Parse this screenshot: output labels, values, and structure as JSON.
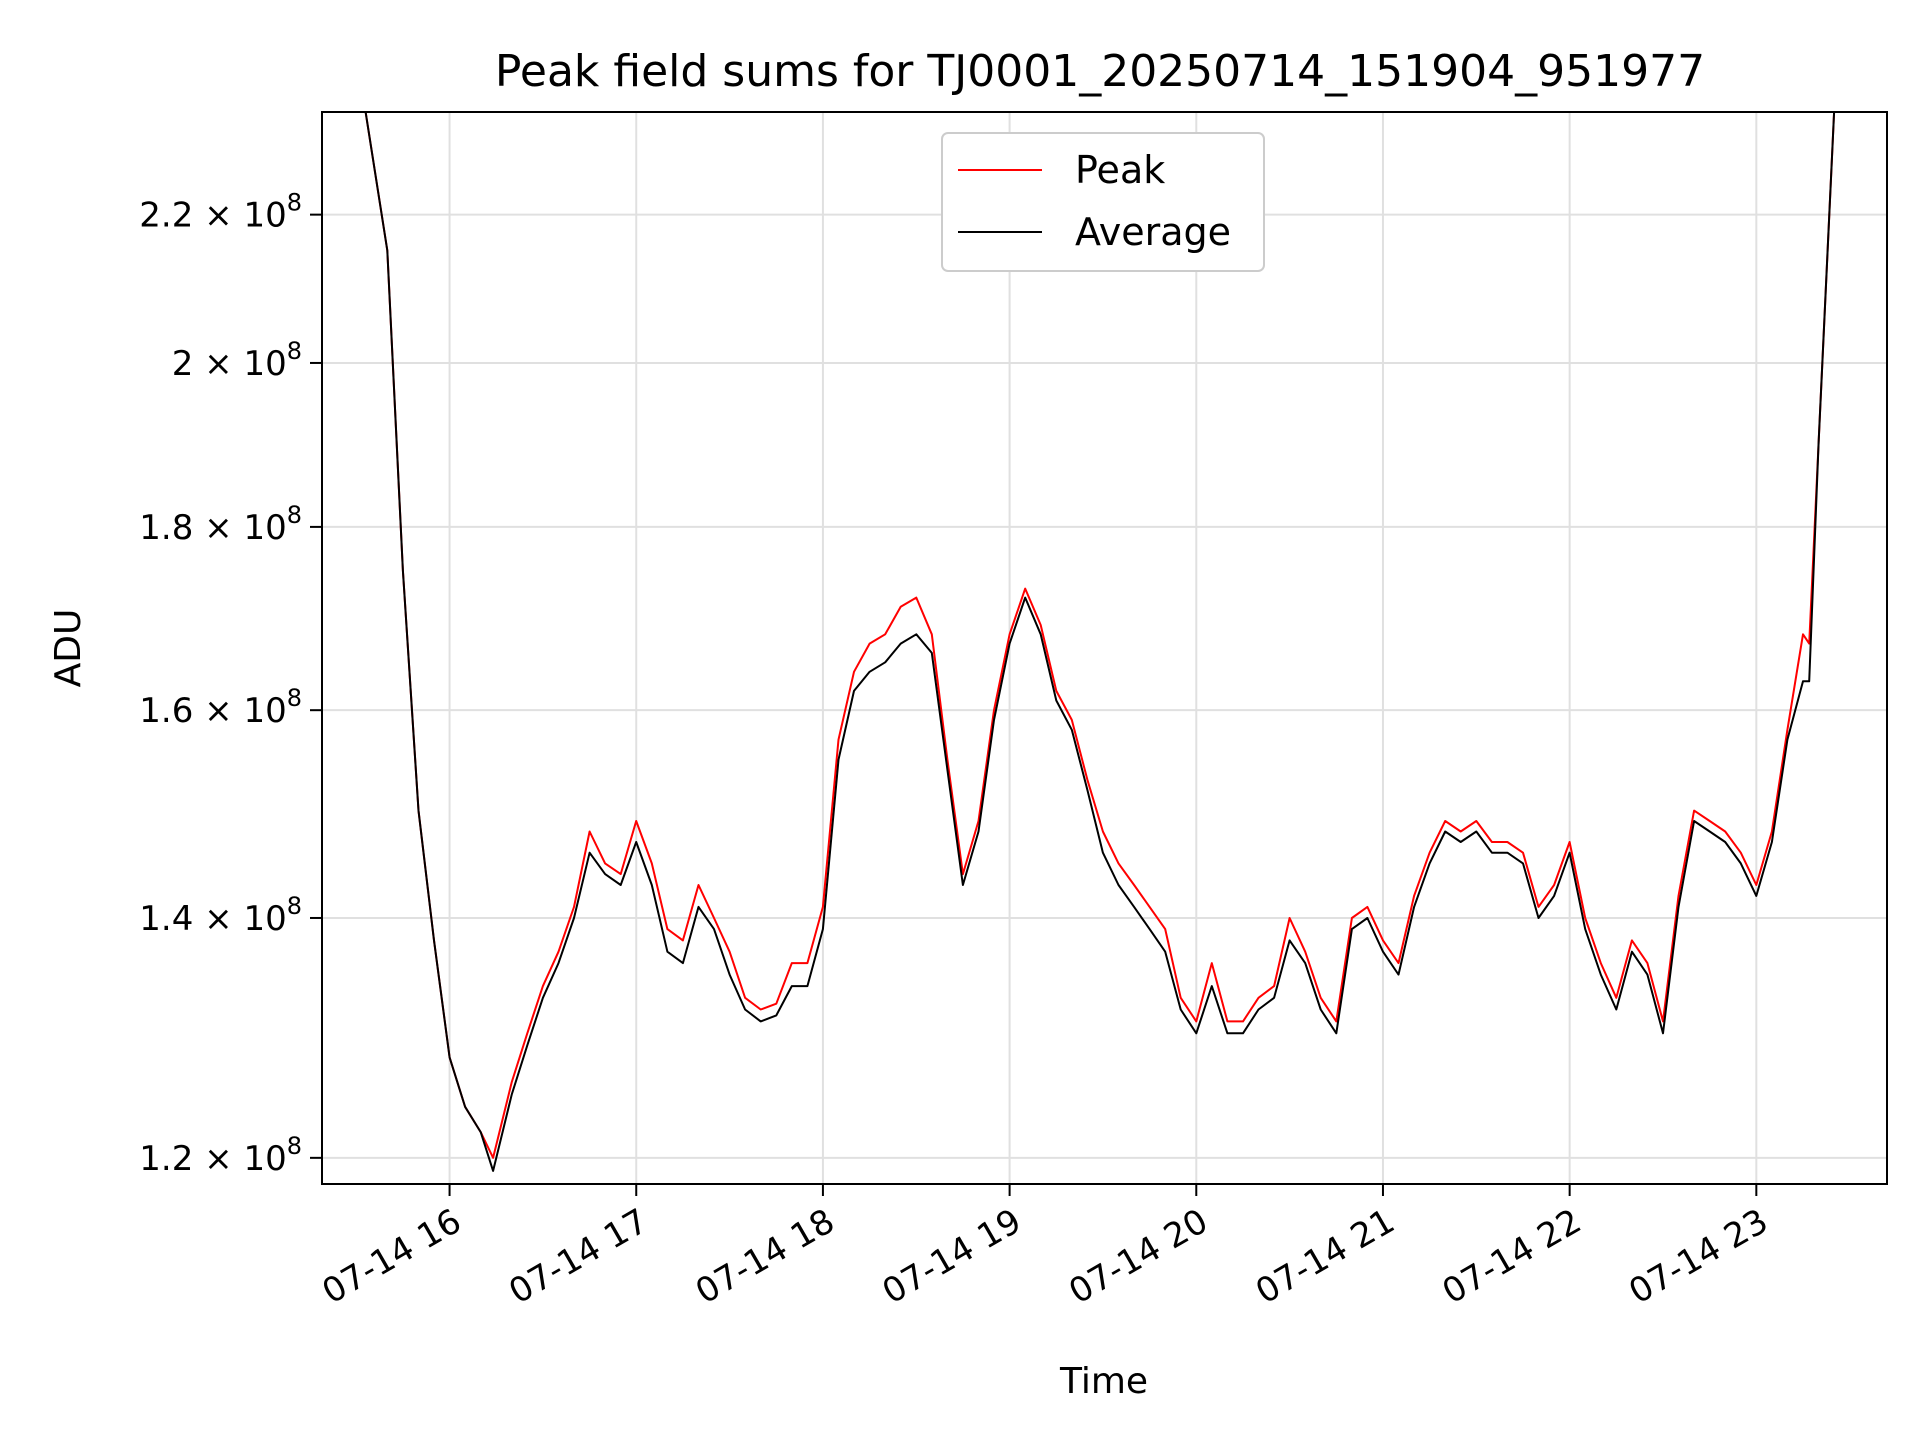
{
  "chart_data": {
    "type": "line",
    "title": "Peak field sums for TJ0001_20250714_151904_951977",
    "xlabel": "Time",
    "ylabel": "ADU",
    "yscale": "log",
    "grid": true,
    "legend_position": "top-center",
    "xlim": [
      "2025-07-14 15:19",
      "2025-07-14 23:42"
    ],
    "ylim": [
      118000000,
      235000000
    ],
    "x_ticks": [
      "07-14 16",
      "07-14 17",
      "07-14 18",
      "07-14 19",
      "07-14 20",
      "07-14 21",
      "07-14 22",
      "07-14 23"
    ],
    "y_ticks": [
      {
        "value": 120000000,
        "mantissa": "1.2",
        "exp": "8"
      },
      {
        "value": 140000000,
        "mantissa": "1.4",
        "exp": "8"
      },
      {
        "value": 160000000,
        "mantissa": "1.6",
        "exp": "8"
      },
      {
        "value": 180000000,
        "mantissa": "1.8",
        "exp": "8"
      },
      {
        "value": 200000000,
        "mantissa": "2",
        "exp": "8"
      },
      {
        "value": 220000000,
        "mantissa": "2.2",
        "exp": "8"
      }
    ],
    "x": [
      "15:33",
      "15:40",
      "15:45",
      "15:50",
      "15:55",
      "16:00",
      "16:05",
      "16:10",
      "16:14",
      "16:20",
      "16:25",
      "16:30",
      "16:35",
      "16:40",
      "16:45",
      "16:50",
      "16:55",
      "17:00",
      "17:05",
      "17:10",
      "17:15",
      "17:20",
      "17:25",
      "17:30",
      "17:35",
      "17:40",
      "17:45",
      "17:50",
      "17:55",
      "18:00",
      "18:05",
      "18:10",
      "18:15",
      "18:20",
      "18:25",
      "18:30",
      "18:35",
      "18:40",
      "18:45",
      "18:50",
      "18:55",
      "19:00",
      "19:05",
      "19:10",
      "19:15",
      "19:20",
      "19:25",
      "19:30",
      "19:35",
      "19:40",
      "19:45",
      "19:50",
      "19:55",
      "20:00",
      "20:05",
      "20:10",
      "20:15",
      "20:20",
      "20:25",
      "20:30",
      "20:35",
      "20:40",
      "20:45",
      "20:50",
      "20:55",
      "21:00",
      "21:05",
      "21:10",
      "21:15",
      "21:20",
      "21:25",
      "21:30",
      "21:35",
      "21:40",
      "21:45",
      "21:50",
      "21:55",
      "22:00",
      "22:05",
      "22:10",
      "22:15",
      "22:20",
      "22:25",
      "22:30",
      "22:35",
      "22:40",
      "22:45",
      "22:50",
      "22:55",
      "23:00",
      "23:05",
      "23:10",
      "23:15",
      "23:17",
      "23:20",
      "23:25"
    ],
    "series": [
      {
        "name": "Peak",
        "color": "#ff0000",
        "values": [
          235000000,
          215000000,
          175000000,
          150000000,
          138000000,
          128000000,
          124000000,
          122000000,
          120000000,
          126000000,
          130000000,
          134000000,
          137000000,
          141000000,
          148000000,
          145000000,
          144000000,
          149000000,
          145000000,
          139000000,
          138000000,
          143000000,
          140000000,
          137000000,
          133000000,
          132000000,
          132500000,
          136000000,
          136000000,
          141000000,
          157000000,
          164000000,
          167000000,
          168000000,
          171000000,
          172000000,
          168000000,
          155000000,
          144000000,
          149000000,
          160000000,
          168000000,
          173000000,
          169000000,
          162000000,
          159000000,
          153000000,
          148000000,
          145000000,
          143000000,
          141000000,
          139000000,
          133000000,
          131000000,
          136000000,
          131000000,
          131000000,
          133000000,
          134000000,
          140000000,
          137000000,
          133000000,
          131000000,
          140000000,
          141000000,
          138000000,
          136000000,
          142000000,
          146000000,
          149000000,
          148000000,
          149000000,
          147000000,
          147000000,
          146000000,
          141000000,
          143000000,
          147000000,
          140000000,
          136000000,
          133000000,
          138000000,
          136000000,
          131000000,
          142000000,
          150000000,
          149000000,
          148000000,
          146000000,
          143000000,
          148000000,
          158000000,
          168000000,
          167000000,
          190000000,
          235000000
        ]
      },
      {
        "name": "Average",
        "color": "#000000",
        "values": [
          235000000,
          215000000,
          175000000,
          150000000,
          138000000,
          128000000,
          124000000,
          122000000,
          119000000,
          125000000,
          129000000,
          133000000,
          136000000,
          140000000,
          146000000,
          144000000,
          143000000,
          147000000,
          143000000,
          137000000,
          136000000,
          141000000,
          139000000,
          135000000,
          132000000,
          131000000,
          131500000,
          134000000,
          134000000,
          139000000,
          155000000,
          162000000,
          164000000,
          165000000,
          167000000,
          168000000,
          166000000,
          154000000,
          143000000,
          148000000,
          159000000,
          167000000,
          172000000,
          168000000,
          161000000,
          158000000,
          152000000,
          146000000,
          143000000,
          141000000,
          139000000,
          137000000,
          132000000,
          130000000,
          134000000,
          130000000,
          130000000,
          132000000,
          133000000,
          138000000,
          136000000,
          132000000,
          130000000,
          139000000,
          140000000,
          137000000,
          135000000,
          141000000,
          145000000,
          148000000,
          147000000,
          148000000,
          146000000,
          146000000,
          145000000,
          140000000,
          142000000,
          146000000,
          139000000,
          135000000,
          132000000,
          137000000,
          135000000,
          130000000,
          141000000,
          149000000,
          148000000,
          147000000,
          145000000,
          142000000,
          147000000,
          157000000,
          163000000,
          163000000,
          190000000,
          235000000
        ]
      }
    ]
  }
}
